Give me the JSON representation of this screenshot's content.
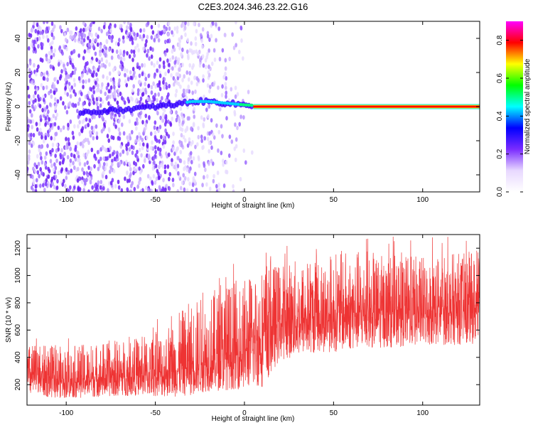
{
  "title": "C2E3.2024.346.23.22.G16",
  "chart_data": [
    {
      "type": "heatmap",
      "xlabel": "Height of straight line (km)",
      "ylabel": "Frequency (Hz)",
      "xlim": [
        -122,
        132
      ],
      "ylim": [
        -50,
        50
      ],
      "xticks": [
        -100,
        -50,
        0,
        50,
        100
      ],
      "yticks": [
        -40,
        -20,
        0,
        20,
        40
      ],
      "colorbar": {
        "label": "Normalized spectral amplitude",
        "range": [
          0,
          0.9
        ],
        "ticks": [
          0.0,
          0.2,
          0.4,
          0.6,
          0.8
        ],
        "tick_labels": [
          "0.0",
          "0.2",
          "0.4",
          "0.6",
          "0.8"
        ],
        "colormap": [
          "#ffffff",
          "#e8d8ff",
          "#7a2cff",
          "#0000ff",
          "#00ffff",
          "#00ff00",
          "#ffff00",
          "#ff0000",
          "#ff00ff"
        ]
      },
      "ridge": [
        {
          "x": -85,
          "freq": -3,
          "amp": 0.15
        },
        {
          "x": -70,
          "freq": -2,
          "amp": 0.18
        },
        {
          "x": -50,
          "freq": 0,
          "amp": 0.2
        },
        {
          "x": -40,
          "freq": 1,
          "amp": 0.25
        },
        {
          "x": -30,
          "freq": 3,
          "amp": 0.4
        },
        {
          "x": -20,
          "freq": 3,
          "amp": 0.4
        },
        {
          "x": -10,
          "freq": 2,
          "amp": 0.35
        },
        {
          "x": 0,
          "freq": 1,
          "amp": 0.5
        },
        {
          "x": 10,
          "freq": 0.5,
          "amp": 0.7
        },
        {
          "x": 25,
          "freq": 0.3,
          "amp": 0.8
        },
        {
          "x": 50,
          "freq": 0,
          "amp": 0.85
        },
        {
          "x": 132,
          "freq": 0,
          "amp": 0.85
        }
      ]
    },
    {
      "type": "line",
      "xlabel": "Height of straight line (km)",
      "ylabel": "SNR (10 * v/v)",
      "xlim": [
        -122,
        132
      ],
      "ylim": [
        50,
        1300
      ],
      "xticks": [
        -100,
        -50,
        0,
        50,
        100
      ],
      "yticks": [
        200,
        400,
        600,
        800,
        1000,
        1200
      ],
      "color": "#ee3333",
      "envelope": [
        {
          "x": -122,
          "low": 110,
          "mid": 270,
          "high": 500
        },
        {
          "x": -100,
          "low": 100,
          "mid": 240,
          "high": 480
        },
        {
          "x": -80,
          "low": 110,
          "mid": 250,
          "high": 520
        },
        {
          "x": -60,
          "low": 120,
          "mid": 270,
          "high": 550
        },
        {
          "x": -50,
          "low": 110,
          "mid": 260,
          "high": 600
        },
        {
          "x": -40,
          "low": 110,
          "mid": 300,
          "high": 680
        },
        {
          "x": -30,
          "low": 120,
          "mid": 350,
          "high": 820
        },
        {
          "x": -20,
          "low": 150,
          "mid": 370,
          "high": 880
        },
        {
          "x": -10,
          "low": 160,
          "mid": 400,
          "high": 950
        },
        {
          "x": 0,
          "low": 170,
          "mid": 430,
          "high": 1000
        },
        {
          "x": 10,
          "low": 180,
          "mid": 550,
          "high": 1100
        },
        {
          "x": 20,
          "low": 380,
          "mid": 650,
          "high": 1100
        },
        {
          "x": 40,
          "low": 430,
          "mid": 700,
          "high": 1150
        },
        {
          "x": 60,
          "low": 450,
          "mid": 720,
          "high": 1200
        },
        {
          "x": 80,
          "low": 470,
          "mid": 730,
          "high": 1150
        },
        {
          "x": 100,
          "low": 480,
          "mid": 740,
          "high": 1150
        },
        {
          "x": 132,
          "low": 500,
          "mid": 760,
          "high": 1180
        }
      ]
    }
  ]
}
